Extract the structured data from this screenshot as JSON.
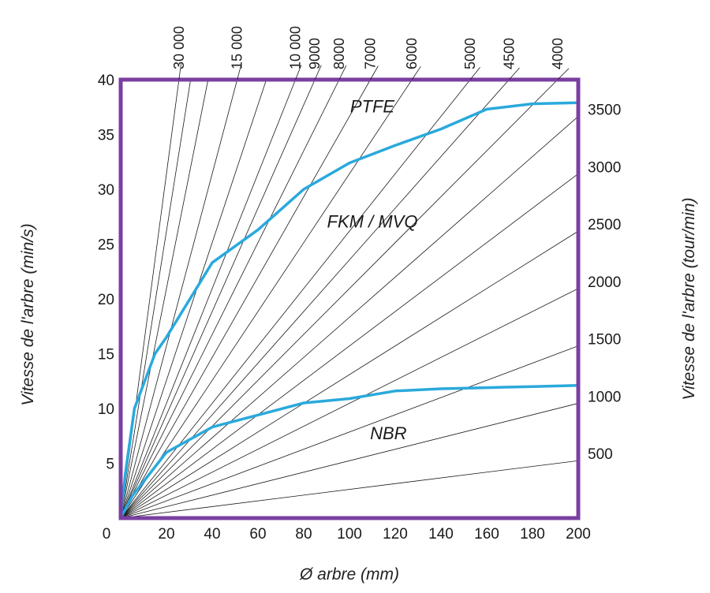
{
  "chart_data": {
    "type": "line",
    "title": "",
    "xlabel": "Ø arbre (mm)",
    "ylabel": "Vitesse de l'arbre (min/s)",
    "y2label": "Vitesse de l'arbre (tour/min)",
    "xlim": [
      0,
      200
    ],
    "ylim": [
      0,
      40
    ],
    "x_ticks": [
      0,
      20,
      40,
      60,
      80,
      100,
      120,
      140,
      160,
      180,
      200
    ],
    "y_ticks": [
      0,
      5,
      10,
      15,
      20,
      25,
      30,
      35,
      40
    ],
    "right_ticks": [
      500,
      1000,
      1500,
      2000,
      2500,
      3000,
      3500
    ],
    "top_ticks": [
      30000,
      15000,
      10000,
      9000,
      8000,
      7000,
      6000,
      5000,
      4500,
      4000
    ],
    "top_tick_labels": [
      "30 000",
      "15 000",
      "10 000",
      "9000",
      "8000",
      "7000",
      "6000",
      "5000",
      "4500",
      "4000"
    ],
    "rpm_lines": [
      30000,
      25000,
      20000,
      15000,
      12000,
      10000,
      9000,
      8000,
      7000,
      6000,
      5000,
      4500,
      4000,
      3500,
      3000,
      2500,
      2000,
      1500,
      1000,
      500
    ],
    "series": [
      {
        "x": [
          0,
          2,
          6,
          15,
          20,
          40,
          60,
          80,
          100,
          120,
          140,
          160,
          180,
          200
        ],
        "y": [
          0,
          4,
          10,
          15,
          16.5,
          23.3,
          26.3,
          30,
          32.4,
          34,
          35.5,
          37.3,
          37.8,
          37.9
        ]
      },
      {
        "x": [
          0,
          5,
          20,
          40,
          60,
          80,
          100,
          120,
          140,
          160,
          180,
          200
        ],
        "y": [
          0,
          2,
          6,
          8.3,
          9.4,
          10.5,
          10.9,
          11.6,
          11.8,
          11.9,
          12,
          12.1
        ]
      }
    ],
    "annotations": [
      {
        "text": "PTFE",
        "x": 110,
        "y": 37
      },
      {
        "text": "FKM / MVQ",
        "x": 110,
        "y": 26.5
      },
      {
        "text": "NBR",
        "x": 117,
        "y": 7.2
      }
    ],
    "grid": false,
    "legend": "none"
  },
  "colors": {
    "frame": "#7b3fa0",
    "curve": "#2aa9dc",
    "rays": "#1a1a1a"
  }
}
